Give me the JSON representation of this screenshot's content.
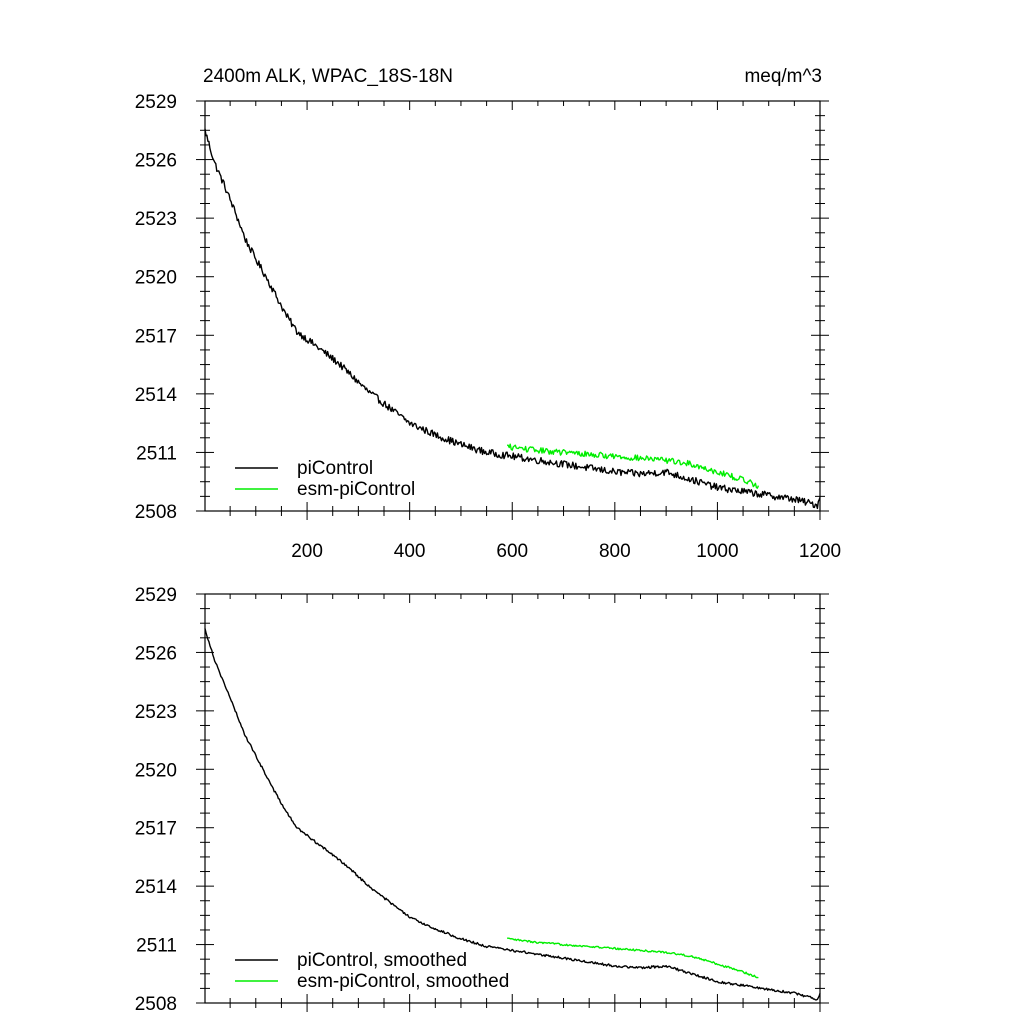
{
  "header": {
    "title": "2400m ALK, WPAC_18S-18N",
    "units": "meq/m^3"
  },
  "colors": {
    "piControl": "#000000",
    "esm_piControl": "#00ee00",
    "axis": "#000000"
  },
  "chart_data": [
    {
      "type": "line",
      "panel": "top",
      "title": "2400m ALK, WPAC_18S-18N",
      "units_label": "meq/m^3",
      "xlabel": "",
      "ylabel": "",
      "xlim": [
        1,
        1200
      ],
      "ylim": [
        2508,
        2529
      ],
      "xticks": [
        200,
        400,
        600,
        800,
        1000,
        1200
      ],
      "xtick_labels": [
        "200",
        "400",
        "600",
        "800",
        "1000",
        "1200"
      ],
      "yticks": [
        2508,
        2511,
        2514,
        2517,
        2520,
        2523,
        2526,
        2529
      ],
      "ytick_labels": [
        "2508",
        "2511",
        "2514",
        "2517",
        "2520",
        "2523",
        "2526",
        "2529"
      ],
      "legend": "bottom-left",
      "series": [
        {
          "name": "piControl",
          "color": "#000000",
          "noise": 0.18,
          "x": [
            1,
            20,
            40,
            60,
            80,
            100,
            120,
            140,
            160,
            180,
            200,
            220,
            240,
            260,
            280,
            300,
            320,
            340,
            360,
            380,
            400,
            450,
            500,
            550,
            600,
            650,
            700,
            750,
            800,
            850,
            900,
            950,
            1000,
            1050,
            1100,
            1150,
            1195,
            1200
          ],
          "y": [
            2527.5,
            2525.8,
            2524.6,
            2523.3,
            2521.9,
            2520.9,
            2520.0,
            2519.0,
            2518.0,
            2517.2,
            2516.8,
            2516.4,
            2516.0,
            2515.6,
            2515.1,
            2514.6,
            2514.1,
            2513.7,
            2513.3,
            2512.9,
            2512.5,
            2511.9,
            2511.4,
            2511.0,
            2510.8,
            2510.6,
            2510.4,
            2510.2,
            2510.0,
            2509.9,
            2510.0,
            2509.6,
            2509.2,
            2509.0,
            2508.8,
            2508.6,
            2508.3,
            2508.7
          ]
        },
        {
          "name": "esm-piControl",
          "color": "#00ee00",
          "noise": 0.15,
          "x": [
            590,
            650,
            700,
            750,
            800,
            850,
            900,
            950,
            1000,
            1050,
            1080
          ],
          "y": [
            2511.3,
            2511.1,
            2511.0,
            2510.9,
            2510.8,
            2510.7,
            2510.6,
            2510.4,
            2510.0,
            2509.6,
            2509.3
          ]
        }
      ]
    },
    {
      "type": "line",
      "panel": "bottom",
      "xlabel": "",
      "ylabel": "",
      "xlim": [
        1,
        1200
      ],
      "ylim": [
        2508,
        2529
      ],
      "xticks": [
        200,
        400,
        600,
        800,
        1000,
        1200
      ],
      "yticks": [
        2508,
        2511,
        2514,
        2517,
        2520,
        2523,
        2526,
        2529
      ],
      "ytick_labels": [
        "2508",
        "2511",
        "2514",
        "2517",
        "2520",
        "2523",
        "2526",
        "2529"
      ],
      "legend": "bottom-left",
      "series": [
        {
          "name": "piControl, smoothed",
          "color": "#000000",
          "noise": 0.06,
          "x": [
            1,
            20,
            40,
            60,
            80,
            100,
            120,
            140,
            160,
            180,
            200,
            220,
            240,
            260,
            280,
            300,
            320,
            340,
            360,
            380,
            400,
            450,
            500,
            550,
            600,
            650,
            700,
            750,
            800,
            850,
            900,
            950,
            1000,
            1050,
            1100,
            1150,
            1195,
            1200
          ],
          "y": [
            2527.2,
            2525.6,
            2524.3,
            2523.0,
            2521.7,
            2520.7,
            2519.7,
            2518.7,
            2517.8,
            2517.0,
            2516.6,
            2516.2,
            2515.8,
            2515.4,
            2515.0,
            2514.5,
            2514.0,
            2513.6,
            2513.2,
            2512.8,
            2512.4,
            2511.8,
            2511.3,
            2510.9,
            2510.7,
            2510.5,
            2510.3,
            2510.1,
            2509.9,
            2509.8,
            2509.9,
            2509.5,
            2509.1,
            2508.9,
            2508.7,
            2508.5,
            2508.2,
            2508.5
          ]
        },
        {
          "name": "esm-piControl, smoothed",
          "color": "#00ee00",
          "noise": 0.05,
          "x": [
            590,
            650,
            700,
            750,
            800,
            850,
            900,
            950,
            1000,
            1050,
            1080
          ],
          "y": [
            2511.3,
            2511.1,
            2511.0,
            2510.9,
            2510.8,
            2510.7,
            2510.6,
            2510.4,
            2510.0,
            2509.6,
            2509.3
          ]
        }
      ]
    }
  ]
}
